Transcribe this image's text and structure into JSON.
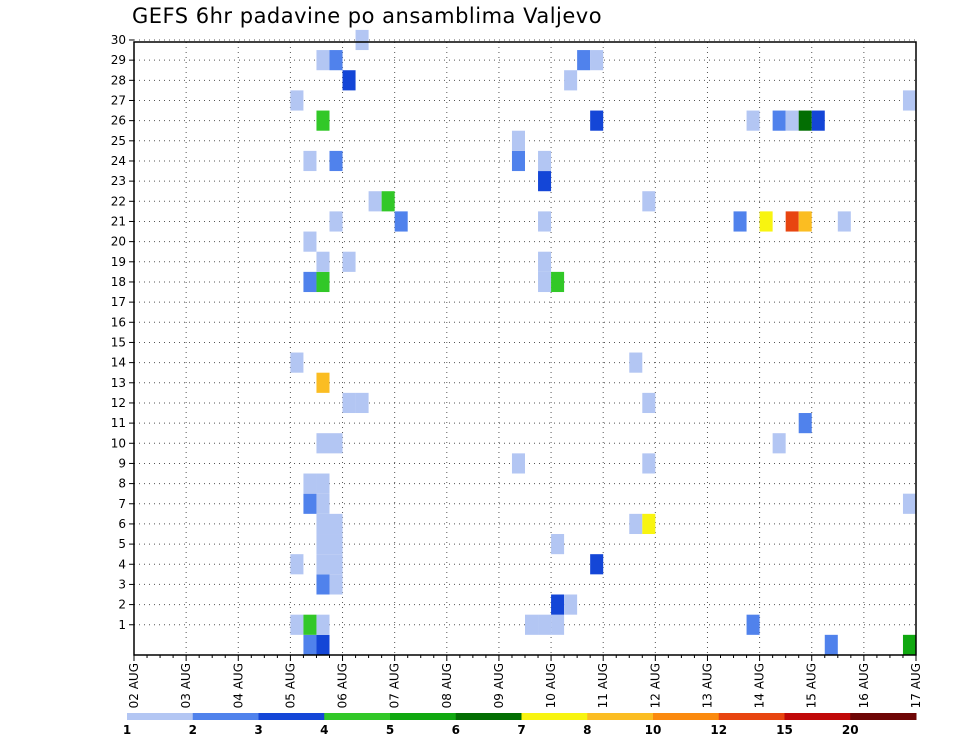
{
  "chart_data": {
    "type": "heatmap",
    "title": "GEFS 6hr padavine po ansamblima Valjevo",
    "x_tick_labels": [
      "02 AUG",
      "03 AUG",
      "04 AUG",
      "05 AUG",
      "06 AUG",
      "07 AUG",
      "08 AUG",
      "09 AUG",
      "10 AUG",
      "11 AUG",
      "12 AUG",
      "13 AUG",
      "14 AUG",
      "15 AUG",
      "16 AUG",
      "17 AUG"
    ],
    "y_tick_labels": [
      "1",
      "2",
      "3",
      "4",
      "5",
      "6",
      "7",
      "8",
      "9",
      "10",
      "11",
      "12",
      "13",
      "14",
      "15",
      "16",
      "17",
      "18",
      "19",
      "20",
      "21",
      "22",
      "23",
      "24",
      "25",
      "26",
      "27",
      "28",
      "29",
      "30"
    ],
    "x_step_hours": 6,
    "ensemble_members": 31,
    "grid": true,
    "colorbar": {
      "levels": [
        "1",
        "2",
        "3",
        "4",
        "5",
        "6",
        "7",
        "8",
        "10",
        "12",
        "15",
        "20"
      ],
      "colors": [
        "#b3c6f3",
        "#5082ec",
        "#1446d7",
        "#32c828",
        "#10a810",
        "#036e03",
        "#f8f410",
        "#fbbd22",
        "#fb8a0e",
        "#e84510",
        "#c00808",
        "#6e0606"
      ]
    },
    "cells": [
      {
        "member": 0,
        "step": 13,
        "level": 2
      },
      {
        "member": 0,
        "step": 14,
        "level": 3
      },
      {
        "member": 0,
        "step": 53,
        "level": 2
      },
      {
        "member": 0,
        "step": 59,
        "level": 5
      },
      {
        "member": 1,
        "step": 12,
        "level": 1
      },
      {
        "member": 1,
        "step": 13,
        "level": 4
      },
      {
        "member": 1,
        "step": 14,
        "level": 1
      },
      {
        "member": 1,
        "step": 30,
        "level": 1
      },
      {
        "member": 1,
        "step": 31,
        "level": 1
      },
      {
        "member": 1,
        "step": 32,
        "level": 1
      },
      {
        "member": 1,
        "step": 47,
        "level": 2
      },
      {
        "member": 2,
        "step": 32,
        "level": 3
      },
      {
        "member": 2,
        "step": 33,
        "level": 1
      },
      {
        "member": 3,
        "step": 14,
        "level": 2
      },
      {
        "member": 3,
        "step": 15,
        "level": 1
      },
      {
        "member": 4,
        "step": 12,
        "level": 1
      },
      {
        "member": 4,
        "step": 14,
        "level": 1
      },
      {
        "member": 4,
        "step": 15,
        "level": 1
      },
      {
        "member": 4,
        "step": 35,
        "level": 3
      },
      {
        "member": 5,
        "step": 14,
        "level": 1
      },
      {
        "member": 5,
        "step": 15,
        "level": 1
      },
      {
        "member": 5,
        "step": 32,
        "level": 1
      },
      {
        "member": 6,
        "step": 14,
        "level": 1
      },
      {
        "member": 6,
        "step": 15,
        "level": 1
      },
      {
        "member": 6,
        "step": 38,
        "level": 1
      },
      {
        "member": 6,
        "step": 39,
        "level": 7
      },
      {
        "member": 7,
        "step": 13,
        "level": 2
      },
      {
        "member": 7,
        "step": 14,
        "level": 1
      },
      {
        "member": 7,
        "step": 59,
        "level": 1
      },
      {
        "member": 8,
        "step": 13,
        "level": 1
      },
      {
        "member": 8,
        "step": 14,
        "level": 1
      },
      {
        "member": 9,
        "step": 29,
        "level": 1
      },
      {
        "member": 9,
        "step": 39,
        "level": 1
      },
      {
        "member": 10,
        "step": 14,
        "level": 1
      },
      {
        "member": 10,
        "step": 15,
        "level": 1
      },
      {
        "member": 10,
        "step": 49,
        "level": 1
      },
      {
        "member": 11,
        "step": 51,
        "level": 2
      },
      {
        "member": 12,
        "step": 16,
        "level": 1
      },
      {
        "member": 12,
        "step": 17,
        "level": 1
      },
      {
        "member": 12,
        "step": 39,
        "level": 1
      },
      {
        "member": 13,
        "step": 14,
        "level": 8
      },
      {
        "member": 14,
        "step": 12,
        "level": 1
      },
      {
        "member": 14,
        "step": 38,
        "level": 1
      },
      {
        "member": 18,
        "step": 13,
        "level": 2
      },
      {
        "member": 18,
        "step": 14,
        "level": 4
      },
      {
        "member": 18,
        "step": 31,
        "level": 1
      },
      {
        "member": 18,
        "step": 32,
        "level": 4
      },
      {
        "member": 19,
        "step": 14,
        "level": 1
      },
      {
        "member": 19,
        "step": 16,
        "level": 1
      },
      {
        "member": 19,
        "step": 31,
        "level": 1
      },
      {
        "member": 20,
        "step": 13,
        "level": 1
      },
      {
        "member": 21,
        "step": 15,
        "level": 1
      },
      {
        "member": 21,
        "step": 20,
        "level": 2
      },
      {
        "member": 21,
        "step": 31,
        "level": 1
      },
      {
        "member": 21,
        "step": 46,
        "level": 2
      },
      {
        "member": 21,
        "step": 48,
        "level": 7
      },
      {
        "member": 21,
        "step": 50,
        "level": 10
      },
      {
        "member": 21,
        "step": 51,
        "level": 8
      },
      {
        "member": 21,
        "step": 54,
        "level": 1
      },
      {
        "member": 22,
        "step": 18,
        "level": 1
      },
      {
        "member": 22,
        "step": 19,
        "level": 4
      },
      {
        "member": 22,
        "step": 39,
        "level": 1
      },
      {
        "member": 23,
        "step": 31,
        "level": 3
      },
      {
        "member": 24,
        "step": 13,
        "level": 1
      },
      {
        "member": 24,
        "step": 15,
        "level": 2
      },
      {
        "member": 24,
        "step": 29,
        "level": 2
      },
      {
        "member": 24,
        "step": 31,
        "level": 1
      },
      {
        "member": 25,
        "step": 29,
        "level": 1
      },
      {
        "member": 26,
        "step": 14,
        "level": 4
      },
      {
        "member": 26,
        "step": 35,
        "level": 3
      },
      {
        "member": 26,
        "step": 47,
        "level": 1
      },
      {
        "member": 26,
        "step": 49,
        "level": 2
      },
      {
        "member": 26,
        "step": 50,
        "level": 1
      },
      {
        "member": 26,
        "step": 51,
        "level": 6
      },
      {
        "member": 26,
        "step": 52,
        "level": 3
      },
      {
        "member": 27,
        "step": 12,
        "level": 1
      },
      {
        "member": 27,
        "step": 59,
        "level": 1
      },
      {
        "member": 28,
        "step": 16,
        "level": 3
      },
      {
        "member": 28,
        "step": 33,
        "level": 1
      },
      {
        "member": 29,
        "step": 14,
        "level": 1
      },
      {
        "member": 29,
        "step": 15,
        "level": 2
      },
      {
        "member": 29,
        "step": 34,
        "level": 2
      },
      {
        "member": 29,
        "step": 35,
        "level": 1
      },
      {
        "member": 30,
        "step": 17,
        "level": 1
      }
    ]
  }
}
